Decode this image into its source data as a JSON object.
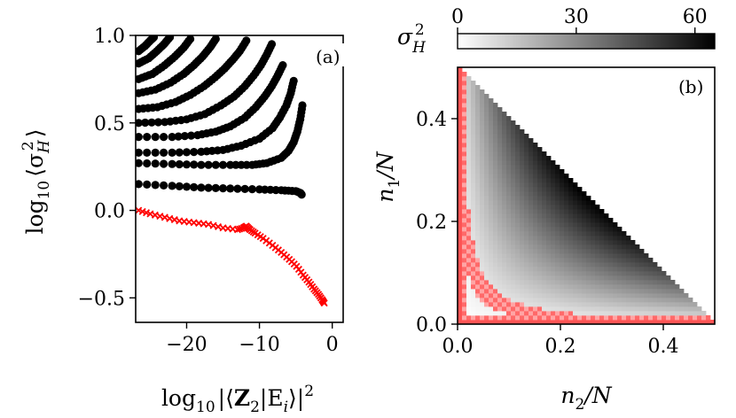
{
  "chart_data": [
    {
      "panel_label": "(a)",
      "type": "scatter",
      "xlabel_parts": {
        "pre": "log",
        "sub": "10",
        "mid": "|⟨",
        "bold": "Z",
        "bold_sub": "2",
        "post": "|E",
        "post_sub": "i",
        "end": "⟩|",
        "sup": "2"
      },
      "ylabel_parts": {
        "pre": "log",
        "sub": "10",
        "mid": "⟨σ",
        "sub2": "H",
        "sup": "2",
        "end": "⟩"
      },
      "xlim": [
        -27,
        1.5
      ],
      "ylim": [
        -0.64,
        1.0
      ],
      "xticks": [
        -20,
        -10,
        0
      ],
      "xtick_labels": [
        "−20",
        "−10",
        "0"
      ],
      "yticks": [
        -0.5,
        0.0,
        0.5,
        1.0
      ],
      "ytick_labels": [
        "−0.5",
        "0.0",
        "0.5",
        "1.0"
      ],
      "grid": false,
      "series": [
        {
          "marker": "circle",
          "color": "#000000",
          "branches": [
            {
              "x": [
                -26.6,
                -22,
                -18,
                -14,
                -10,
                -7,
                -5,
                -4.4,
                -4.2
              ],
              "y": [
                0.15,
                0.14,
                0.13,
                0.125,
                0.12,
                0.115,
                0.11,
                0.1,
                0.09
              ]
            },
            {
              "x": [
                -26.6,
                -22,
                -18,
                -14,
                -11,
                -9,
                -7,
                -6,
                -5.3,
                -4.8,
                -4.4,
                -4.1
              ],
              "y": [
                0.27,
                0.265,
                0.26,
                0.26,
                0.26,
                0.27,
                0.3,
                0.34,
                0.39,
                0.45,
                0.52,
                0.6
              ]
            },
            {
              "x": [
                -26.6,
                -22,
                -18,
                -15,
                -12.5,
                -10,
                -8.2,
                -7.2,
                -6.3,
                -5.7,
                -5.3
              ],
              "y": [
                0.33,
                0.33,
                0.335,
                0.345,
                0.37,
                0.41,
                0.47,
                0.53,
                0.6,
                0.67,
                0.74
              ]
            },
            {
              "x": [
                -26.6,
                -22,
                -18.5,
                -16,
                -14,
                -12,
                -10.5,
                -9.3,
                -8.3,
                -7.5,
                -6.8
              ],
              "y": [
                0.42,
                0.42,
                0.43,
                0.45,
                0.48,
                0.53,
                0.59,
                0.65,
                0.71,
                0.77,
                0.83
              ]
            },
            {
              "x": [
                -26.6,
                -23,
                -20,
                -17.5,
                -15.3,
                -13.5,
                -12,
                -10.8,
                -9.8,
                -9,
                -8.3
              ],
              "y": [
                0.5,
                0.505,
                0.52,
                0.55,
                0.6,
                0.65,
                0.71,
                0.77,
                0.83,
                0.89,
                0.95
              ]
            },
            {
              "x": [
                -26.6,
                -24,
                -21.5,
                -19.5,
                -17.6,
                -16.1,
                -14.8,
                -13.7,
                -12.7,
                -11.8
              ],
              "y": [
                0.58,
                0.59,
                0.62,
                0.66,
                0.71,
                0.76,
                0.81,
                0.86,
                0.91,
                0.97
              ]
            },
            {
              "x": [
                -26.6,
                -24.3,
                -22.2,
                -20.4,
                -19,
                -17.8,
                -16.8,
                -16
              ],
              "y": [
                0.67,
                0.69,
                0.73,
                0.78,
                0.83,
                0.88,
                0.93,
                0.98
              ]
            },
            {
              "x": [
                -26.6,
                -24.7,
                -23,
                -21.6,
                -20.4,
                -19.5
              ],
              "y": [
                0.75,
                0.78,
                0.83,
                0.88,
                0.93,
                0.98
              ]
            },
            {
              "x": [
                -26.6,
                -25.2,
                -24.1,
                -23.1,
                -22.3
              ],
              "y": [
                0.84,
                0.87,
                0.91,
                0.95,
                0.99
              ]
            },
            {
              "x": [
                -26.6,
                -25.7,
                -25,
                -24.5
              ],
              "y": [
                0.91,
                0.94,
                0.97,
                0.99
              ]
            }
          ]
        },
        {
          "marker": "x",
          "color": "#ff0000",
          "x": [
            -26.6,
            -25,
            -23,
            -21,
            -19,
            -17,
            -15,
            -13,
            -12.2,
            -11.8,
            -11.3,
            -10.6,
            -9.5,
            -8.2,
            -7,
            -5.9,
            -4.9,
            -4,
            -3.2,
            -2.5,
            -1.9,
            -1.4,
            -1.1
          ],
          "y": [
            0.0,
            -0.02,
            -0.04,
            -0.06,
            -0.07,
            -0.08,
            -0.1,
            -0.11,
            -0.1,
            -0.09,
            -0.11,
            -0.13,
            -0.16,
            -0.2,
            -0.24,
            -0.28,
            -0.32,
            -0.37,
            -0.41,
            -0.45,
            -0.48,
            -0.51,
            -0.53
          ]
        }
      ]
    },
    {
      "panel_label": "(b)",
      "type": "heatmap",
      "xlabel": "n2/N",
      "xlabel_parts": {
        "var": "n",
        "sub": "2",
        "rest": "/N"
      },
      "ylabel_parts": {
        "var": "n",
        "sub": "1",
        "rest": "/N"
      },
      "xlim": [
        0,
        0.5
      ],
      "ylim": [
        0,
        0.5
      ],
      "xticks": [
        0.0,
        0.2,
        0.4
      ],
      "xtick_labels": [
        "0.0",
        "0.2",
        "0.4"
      ],
      "yticks": [
        0.0,
        0.2,
        0.4
      ],
      "ytick_labels": [
        "0.0",
        "0.2",
        "0.4"
      ],
      "domain": "n1 + n2 <= 0.5",
      "colormap": "white-to-black",
      "highlight_color": "#ff0000",
      "highlight_region": "cells close to the axes n1 = 0 and n2 = 0, following the low-variance hyperbola n1*n2 ~ const",
      "colorbar": {
        "label_parts": {
          "var": "σ",
          "sub": "H",
          "sup": "2"
        },
        "range": [
          0,
          65
        ],
        "ticks": [
          0,
          30,
          60
        ],
        "tick_labels": [
          "0",
          "30",
          "60"
        ]
      }
    }
  ]
}
